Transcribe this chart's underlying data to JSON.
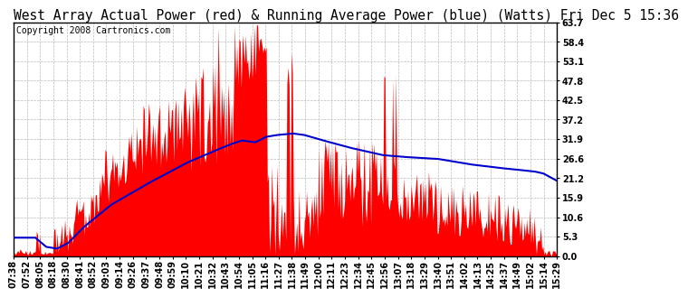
{
  "title": "West Array Actual Power (red) & Running Average Power (blue) (Watts) Fri Dec 5 15:36",
  "copyright": "Copyright 2008 Cartronics.com",
  "background_color": "#ffffff",
  "plot_bg_color": "#ffffff",
  "grid_color": "#bbbbbb",
  "yticks": [
    0.0,
    5.3,
    10.6,
    15.9,
    21.2,
    26.6,
    31.9,
    37.2,
    42.5,
    47.8,
    53.1,
    58.4,
    63.7
  ],
  "ymax": 63.7,
  "x_labels": [
    "07:38",
    "07:52",
    "08:05",
    "08:18",
    "08:30",
    "08:41",
    "08:52",
    "09:03",
    "09:14",
    "09:26",
    "09:37",
    "09:48",
    "09:59",
    "10:10",
    "10:21",
    "10:32",
    "10:43",
    "10:54",
    "11:05",
    "11:16",
    "11:27",
    "11:38",
    "11:49",
    "12:00",
    "12:11",
    "12:23",
    "12:34",
    "12:45",
    "12:56",
    "13:07",
    "13:18",
    "13:29",
    "13:40",
    "13:51",
    "14:02",
    "14:13",
    "14:25",
    "14:37",
    "14:49",
    "15:02",
    "15:14",
    "15:29"
  ],
  "red_color": "#ff0000",
  "blue_color": "#0000cc",
  "dashed_color": "#ff0000",
  "title_fontsize": 10.5,
  "tick_fontsize": 7,
  "copyright_fontsize": 7,
  "n_points": 500
}
